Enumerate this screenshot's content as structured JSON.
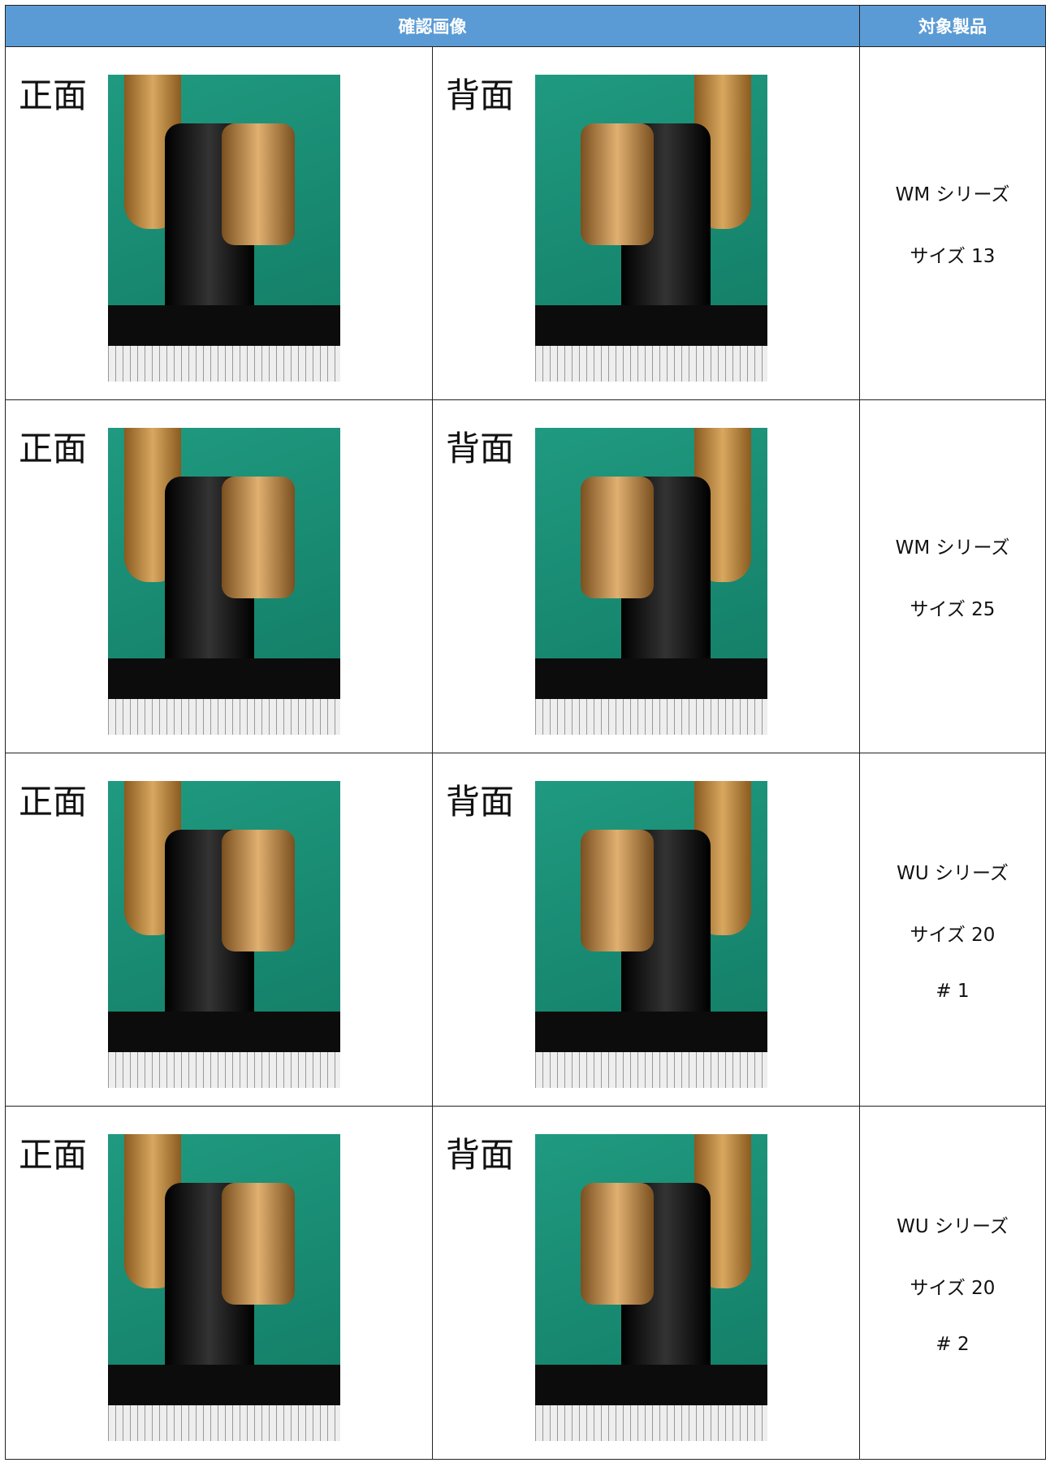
{
  "table": {
    "header": [
      "確認画像",
      "対象製品"
    ],
    "rows": [
      {
        "front_label": "正面",
        "back_label": "背面",
        "product": [
          "WM シリーズ",
          "サイズ 13"
        ]
      },
      {
        "front_label": "正面",
        "back_label": "背面",
        "product": [
          "WM シリーズ",
          "サイズ 25"
        ]
      },
      {
        "front_label": "正面",
        "back_label": "背面",
        "product": [
          "WU シリーズ",
          "サイズ 20",
          "# 1"
        ]
      },
      {
        "front_label": "正面",
        "back_label": "背面",
        "product": [
          "WU シリーズ",
          "サイズ 20",
          "# 2"
        ]
      }
    ]
  }
}
